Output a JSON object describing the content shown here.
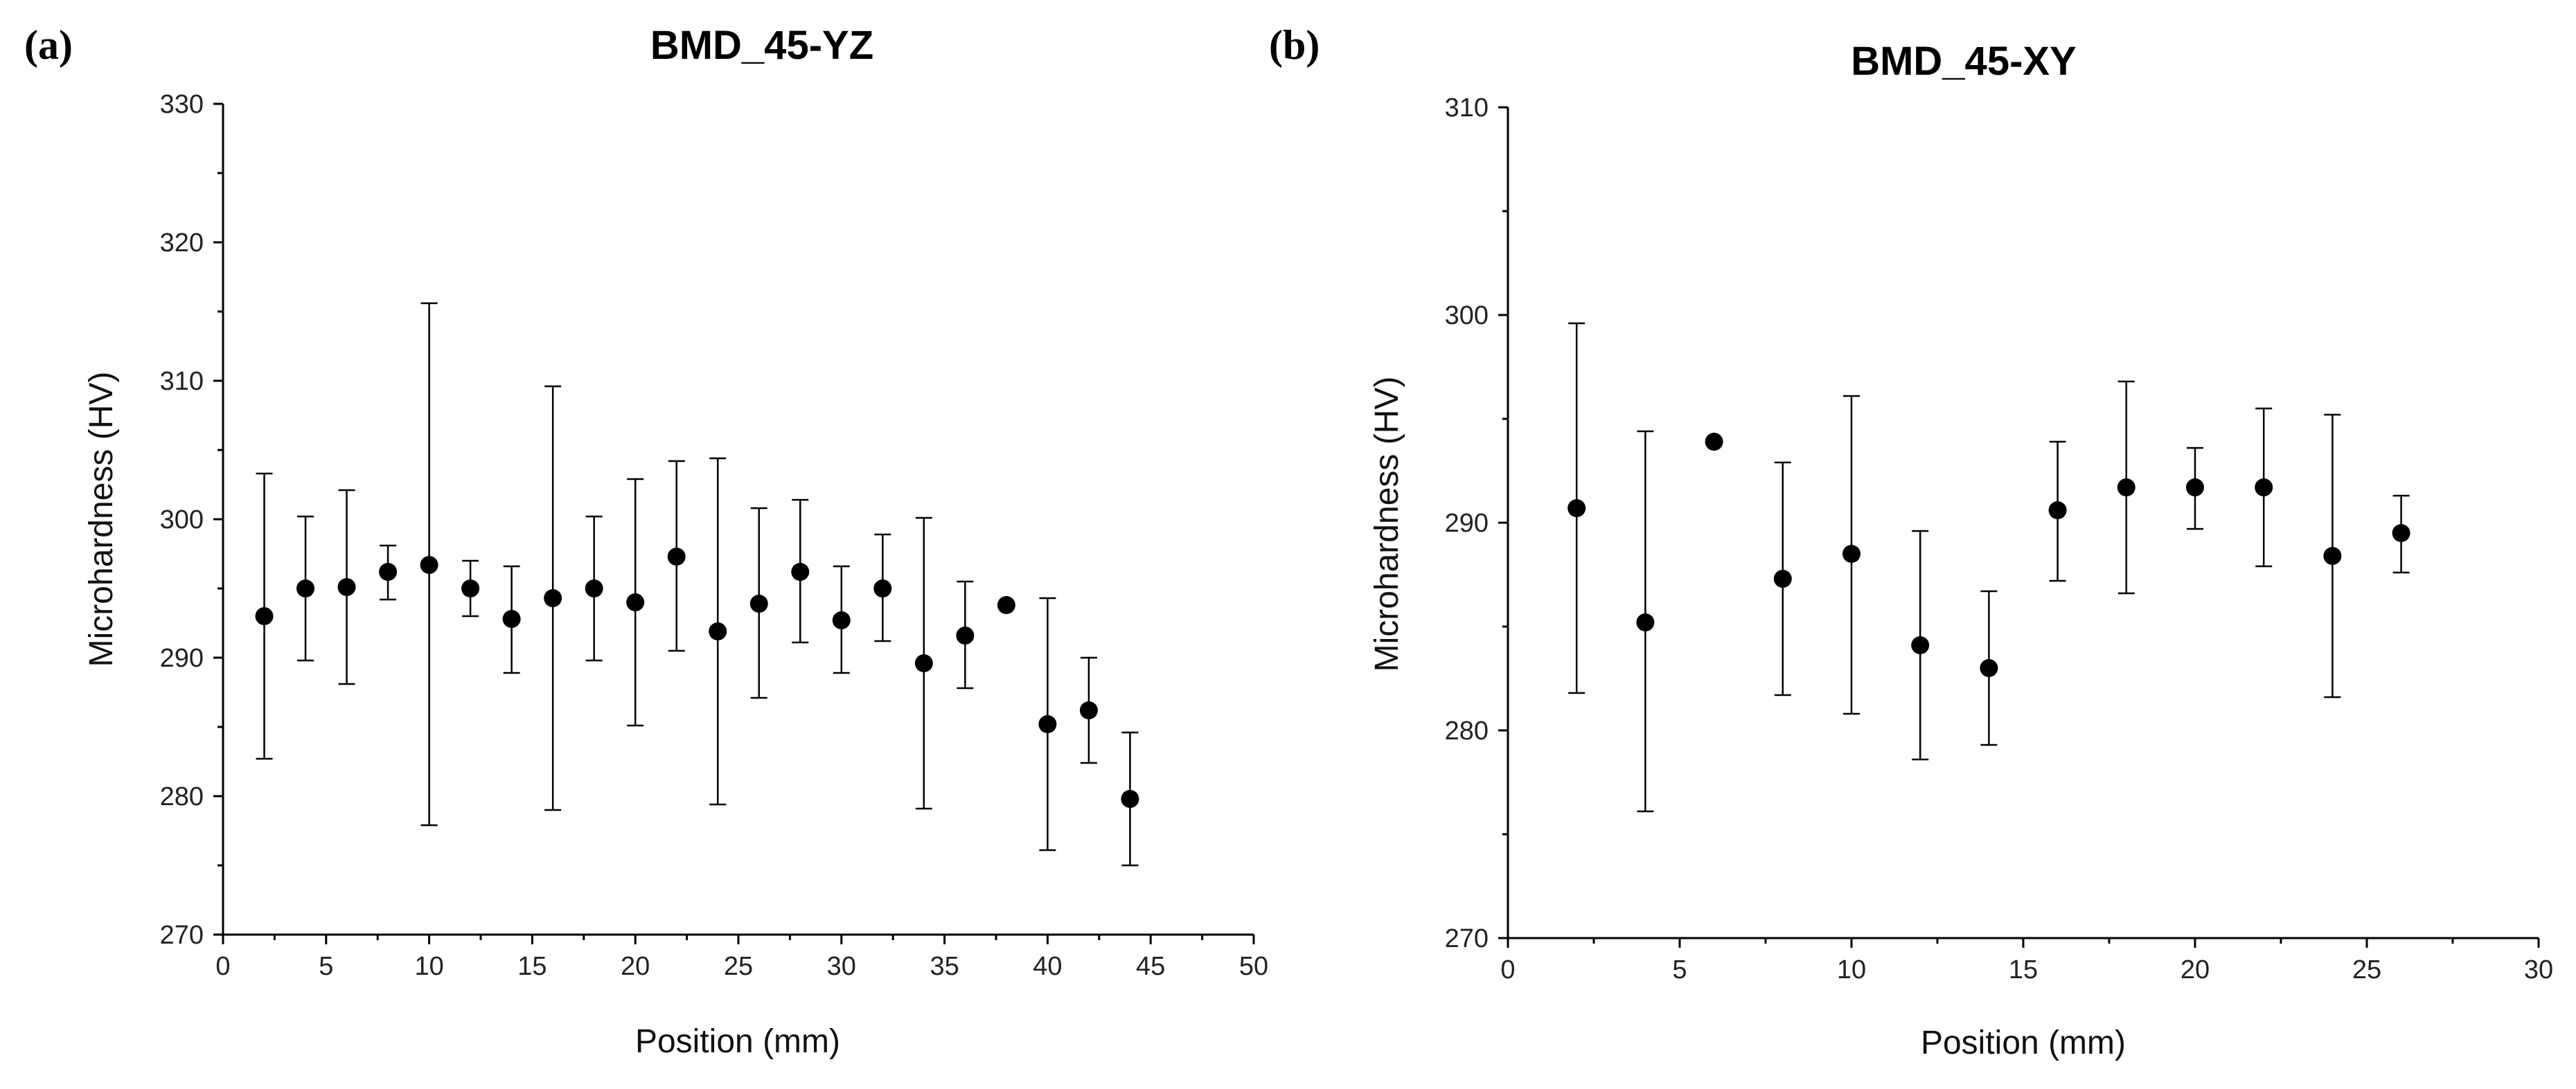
{
  "chart_data": [
    {
      "type": "scatter",
      "panel_label": "(a)",
      "title": "BMD_45-YZ",
      "xlabel": "Position (mm)",
      "ylabel": "Microhardness (HV)",
      "xlim": [
        0,
        50
      ],
      "ylim": [
        270,
        330
      ],
      "x_ticks": [
        0,
        5,
        10,
        15,
        20,
        25,
        30,
        35,
        40,
        45,
        50
      ],
      "y_ticks": [
        270,
        280,
        290,
        300,
        310,
        320,
        330
      ],
      "x_tick_labels": [
        "0",
        "5",
        "10",
        "15",
        "20",
        "25",
        "30",
        "35",
        "40",
        "45",
        "50"
      ],
      "y_tick_labels": [
        "270",
        "280",
        "290",
        "300",
        "310",
        "320",
        "330"
      ],
      "points": [
        {
          "x": 2,
          "y": 293.0,
          "lo": 282.7,
          "hi": 303.3
        },
        {
          "x": 4,
          "y": 295.0,
          "lo": 289.8,
          "hi": 300.2
        },
        {
          "x": 6,
          "y": 295.1,
          "lo": 288.1,
          "hi": 302.1
        },
        {
          "x": 8,
          "y": 296.2,
          "lo": 294.2,
          "hi": 298.1
        },
        {
          "x": 10,
          "y": 296.7,
          "lo": 277.9,
          "hi": 315.6
        },
        {
          "x": 12,
          "y": 295.0,
          "lo": 293.0,
          "hi": 297.0
        },
        {
          "x": 14,
          "y": 292.8,
          "lo": 288.9,
          "hi": 296.6
        },
        {
          "x": 16,
          "y": 294.3,
          "lo": 279.0,
          "hi": 309.6
        },
        {
          "x": 18,
          "y": 295.0,
          "lo": 289.8,
          "hi": 300.2
        },
        {
          "x": 20,
          "y": 294.0,
          "lo": 285.1,
          "hi": 302.9
        },
        {
          "x": 22,
          "y": 297.3,
          "lo": 290.5,
          "hi": 304.2
        },
        {
          "x": 24,
          "y": 291.9,
          "lo": 279.4,
          "hi": 304.4
        },
        {
          "x": 26,
          "y": 293.9,
          "lo": 287.1,
          "hi": 300.8
        },
        {
          "x": 28,
          "y": 296.2,
          "lo": 291.1,
          "hi": 301.4
        },
        {
          "x": 30,
          "y": 292.7,
          "lo": 288.9,
          "hi": 296.6
        },
        {
          "x": 32,
          "y": 295.0,
          "lo": 291.2,
          "hi": 298.9
        },
        {
          "x": 34,
          "y": 289.6,
          "lo": 279.1,
          "hi": 300.1
        },
        {
          "x": 36,
          "y": 291.6,
          "lo": 287.8,
          "hi": 295.5
        },
        {
          "x": 38,
          "y": 293.8,
          "lo": 293.8,
          "hi": 293.8
        },
        {
          "x": 40,
          "y": 285.2,
          "lo": 276.1,
          "hi": 294.3
        },
        {
          "x": 42,
          "y": 286.2,
          "lo": 282.4,
          "hi": 290.0
        },
        {
          "x": 44,
          "y": 279.8,
          "lo": 275.0,
          "hi": 284.6
        }
      ]
    },
    {
      "type": "scatter",
      "panel_label": "(b)",
      "title": "BMD_45-XY",
      "xlabel": "Position (mm)",
      "ylabel": "Microhardness (HV)",
      "xlim": [
        0,
        30
      ],
      "ylim": [
        270,
        310
      ],
      "x_ticks": [
        0,
        5,
        10,
        15,
        20,
        25,
        30
      ],
      "y_ticks": [
        270,
        280,
        290,
        300,
        310
      ],
      "x_tick_labels": [
        "0",
        "5",
        "10",
        "15",
        "20",
        "25",
        "30"
      ],
      "y_tick_labels": [
        "270",
        "280",
        "290",
        "300",
        "310"
      ],
      "points": [
        {
          "x": 2,
          "y": 290.7,
          "lo": 281.8,
          "hi": 299.6
        },
        {
          "x": 4,
          "y": 285.2,
          "lo": 276.1,
          "hi": 294.4
        },
        {
          "x": 6,
          "y": 293.9,
          "lo": 293.9,
          "hi": 293.9
        },
        {
          "x": 8,
          "y": 287.3,
          "lo": 281.7,
          "hi": 292.9
        },
        {
          "x": 10,
          "y": 288.5,
          "lo": 280.8,
          "hi": 296.1
        },
        {
          "x": 12,
          "y": 284.1,
          "lo": 278.6,
          "hi": 289.6
        },
        {
          "x": 14,
          "y": 283.0,
          "lo": 279.3,
          "hi": 286.7
        },
        {
          "x": 16,
          "y": 290.6,
          "lo": 287.2,
          "hi": 293.9
        },
        {
          "x": 18,
          "y": 291.7,
          "lo": 286.6,
          "hi": 296.8
        },
        {
          "x": 20,
          "y": 291.7,
          "lo": 289.7,
          "hi": 293.6
        },
        {
          "x": 22,
          "y": 291.7,
          "lo": 287.9,
          "hi": 295.5
        },
        {
          "x": 24,
          "y": 288.4,
          "lo": 281.6,
          "hi": 295.2
        },
        {
          "x": 26,
          "y": 289.5,
          "lo": 287.6,
          "hi": 291.3
        }
      ]
    }
  ]
}
